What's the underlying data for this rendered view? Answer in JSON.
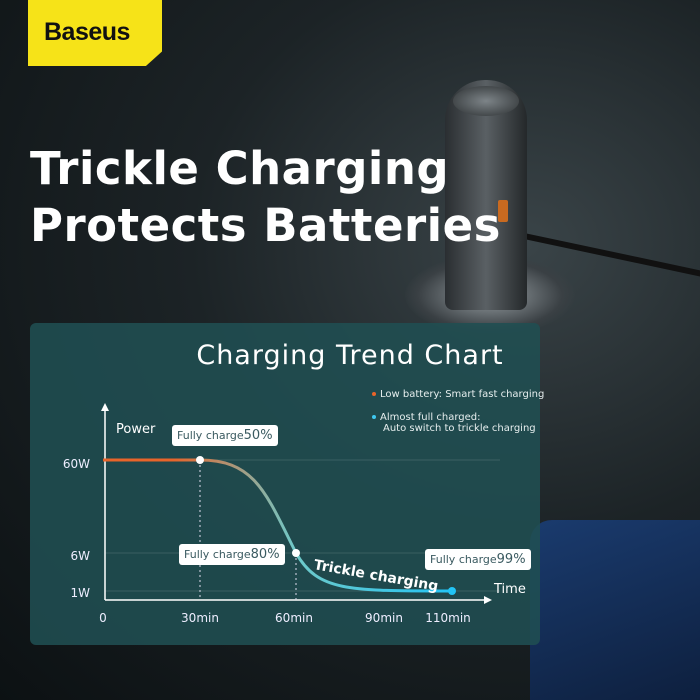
{
  "brand": "Baseus",
  "headline": [
    "Trickle Charging",
    "Protects Batteries"
  ],
  "chart_data": {
    "type": "line",
    "title": "Charging Trend Chart",
    "xlabel": "Time",
    "ylabel": "Power",
    "x_ticks": [
      "0",
      "30min",
      "60min",
      "90min",
      "110min"
    ],
    "y_ticks": [
      "60W",
      "6W",
      "1W"
    ],
    "x": [
      0,
      30,
      60,
      110
    ],
    "y": [
      60,
      60,
      6,
      1
    ],
    "annotations": [
      {
        "x": 30,
        "y": 60,
        "prefix": "Fully charge",
        "value": "50%"
      },
      {
        "x": 60,
        "y": 6,
        "prefix": "Fully charge",
        "value": "80%"
      },
      {
        "x": 110,
        "y": 1,
        "prefix": "Fully charge",
        "value": "99%"
      }
    ],
    "curve_label": "Trickle charging",
    "legend": [
      {
        "text": "Low battery: Smart fast charging",
        "color": "#e8642a"
      },
      {
        "text": "Almost full charged:",
        "text2": "Auto switch to trickle charging",
        "color": "#3fc8f0"
      }
    ],
    "colors": {
      "start": "#e8642a",
      "end": "#22c4f5"
    }
  }
}
